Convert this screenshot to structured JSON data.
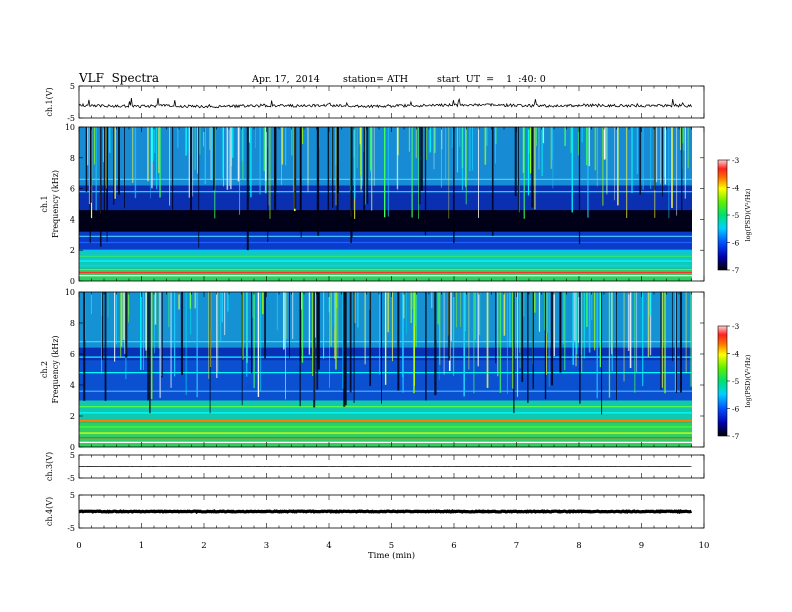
{
  "header": {
    "title": "VLF  Spectra",
    "date": "Apr. 17,  2014",
    "station": "station= ATH",
    "start": "start  UT  =    1  :40: 0"
  },
  "chart_data": [
    {
      "type": "line",
      "name": "ch1-waveform",
      "ylabel": "ch.1(V)",
      "ylim": [
        -5,
        5
      ],
      "yticks": [
        "5",
        "-5"
      ],
      "x": [
        0,
        0.5,
        1,
        1.5,
        2,
        2.5,
        3,
        3.5,
        4,
        4.5,
        5,
        5.5,
        6,
        6.5,
        7,
        7.5,
        8,
        8.5,
        9,
        9.5,
        9.8
      ],
      "y": [
        -1.0,
        -1.2,
        -1.4,
        -1.1,
        -1.5,
        -1.3,
        -1.1,
        -1.2,
        -1.0,
        -1.3,
        -1.2,
        -1.1,
        -1.0,
        -0.9,
        -1.1,
        -1.2,
        -1.0,
        -1.1,
        -1.2,
        -1.1,
        -1.2
      ]
    },
    {
      "type": "heatmap",
      "name": "ch1-spectrogram",
      "ylabel": "ch.1\nFrequency  (kHz)",
      "ylim": [
        0,
        10
      ],
      "yticks": [
        "0",
        "2",
        "4",
        "6",
        "8",
        "10"
      ],
      "colorbar": {
        "label": "log(PSD)(V²/Hz)",
        "ticks": [
          "-3",
          "-4",
          "-5",
          "-6",
          "-7"
        ],
        "range": [
          -7,
          -3
        ]
      }
    },
    {
      "type": "heatmap",
      "name": "ch2-spectrogram",
      "ylabel": "ch.2\nFrequency  (kHz)",
      "ylim": [
        0,
        10
      ],
      "yticks": [
        "0",
        "2",
        "4",
        "6",
        "8",
        "10"
      ],
      "colorbar": {
        "label": "log(PSD)(V²/Hz)",
        "ticks": [
          "-3",
          "-4",
          "-5",
          "-6",
          "-7"
        ],
        "range": [
          -7,
          -3
        ]
      }
    },
    {
      "type": "line",
      "name": "ch3-waveform",
      "ylabel": "ch.3(V)",
      "ylim": [
        -5,
        5
      ],
      "yticks": [
        "5",
        "-5"
      ],
      "x": [
        0,
        9.8
      ],
      "y": [
        0,
        0
      ]
    },
    {
      "type": "line",
      "name": "ch4-waveform",
      "ylabel": "ch.4(V)",
      "ylim": [
        -5,
        5
      ],
      "yticks": [
        "5",
        "-5"
      ],
      "x": [
        0,
        9.8
      ],
      "y": [
        0,
        0
      ]
    }
  ],
  "xaxis": {
    "label": "Time  (min)",
    "range": [
      0,
      10
    ],
    "ticks": [
      "0",
      "1",
      "2",
      "3",
      "4",
      "5",
      "6",
      "7",
      "8",
      "9",
      "10"
    ]
  }
}
